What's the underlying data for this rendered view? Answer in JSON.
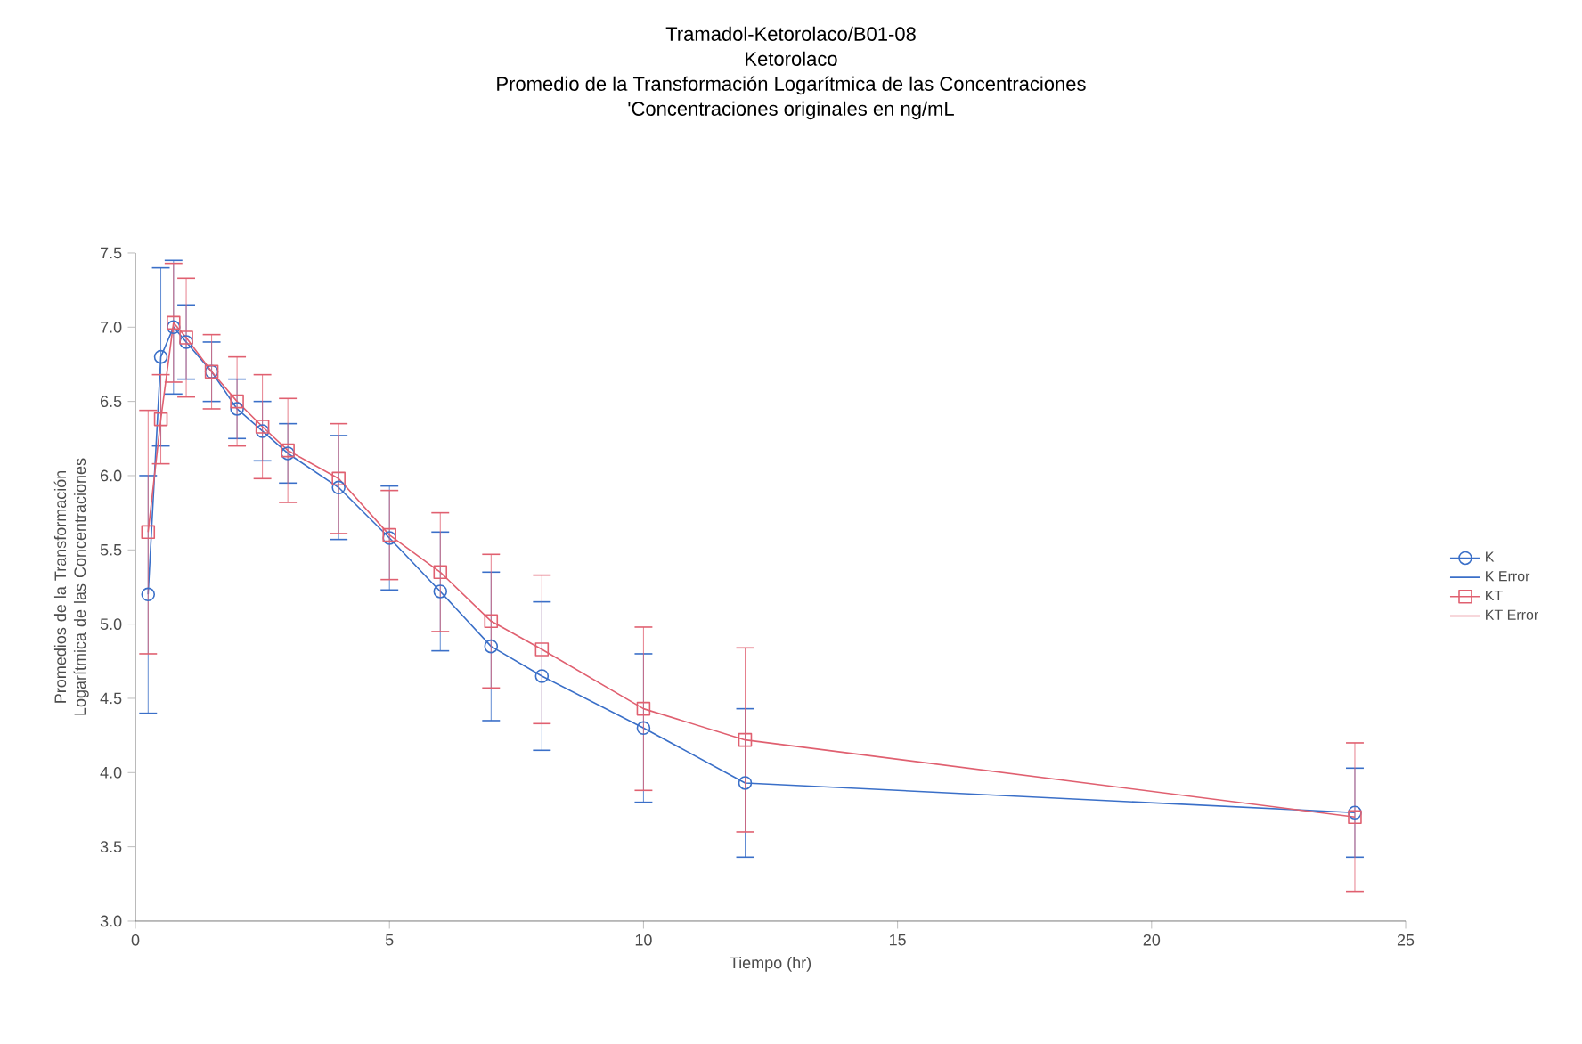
{
  "chart_data": {
    "type": "line",
    "title": "Tramadol-Ketorolaco/B01-08",
    "subtitle": "Ketorolaco",
    "annotations": [
      "Promedio de la Transformación Logarítmica de las Concentraciones",
      "'Concentraciones originales en ng/mL",
      "K Error",
      "KT Error"
    ],
    "xlabel": "Tiempo (hr)",
    "ylabel": "Promedios de la Transformación Logarítmica de las Concentraciones",
    "x": [
      0.25,
      0.5,
      0.75,
      1,
      1.5,
      2,
      2.5,
      3,
      4,
      5,
      6,
      7,
      8,
      10,
      12,
      24
    ],
    "series": [
      {
        "name": "K",
        "color": "#3a6fc8",
        "marker": "circle",
        "values": [
          5.2,
          6.8,
          7.0,
          6.9,
          6.7,
          6.45,
          6.3,
          6.15,
          5.92,
          5.58,
          5.22,
          4.85,
          4.65,
          4.3,
          3.93,
          3.73
        ],
        "errors": [
          0.8,
          0.6,
          0.45,
          0.25,
          0.2,
          0.2,
          0.2,
          0.2,
          0.35,
          0.35,
          0.4,
          0.5,
          0.5,
          0.5,
          0.5,
          0.3
        ]
      },
      {
        "name": "KT",
        "color": "#e06070",
        "marker": "square",
        "values": [
          5.62,
          6.38,
          7.03,
          6.93,
          6.7,
          6.5,
          6.33,
          6.17,
          5.98,
          5.6,
          5.35,
          5.02,
          4.83,
          4.43,
          4.22,
          3.7
        ],
        "errors": [
          0.82,
          0.3,
          0.4,
          0.4,
          0.25,
          0.3,
          0.35,
          0.35,
          0.37,
          0.3,
          0.4,
          0.45,
          0.5,
          0.55,
          0.62,
          0.5
        ]
      }
    ],
    "xlim": [
      0,
      25
    ],
    "xticks": [
      0,
      5,
      10,
      15,
      20,
      25
    ],
    "ylim": [
      3.0,
      7.5
    ],
    "yticks": [
      {
        "value": 3.0,
        "label": "3.0"
      },
      {
        "value": 3.5,
        "label": "3.5"
      },
      {
        "value": 4.0,
        "label": "4.0"
      },
      {
        "value": 4.5,
        "label": "4.5"
      },
      {
        "value": 5.0,
        "label": "5.0"
      },
      {
        "value": 5.5,
        "label": "5.5"
      },
      {
        "value": 6.0,
        "label": "6.0"
      },
      {
        "value": 6.5,
        "label": "6.5"
      },
      {
        "value": 7.0,
        "label": "7.0"
      },
      {
        "value": 7.5,
        "label": "7.5"
      }
    ],
    "grid": false,
    "legend": "right",
    "line_style": "solid"
  }
}
